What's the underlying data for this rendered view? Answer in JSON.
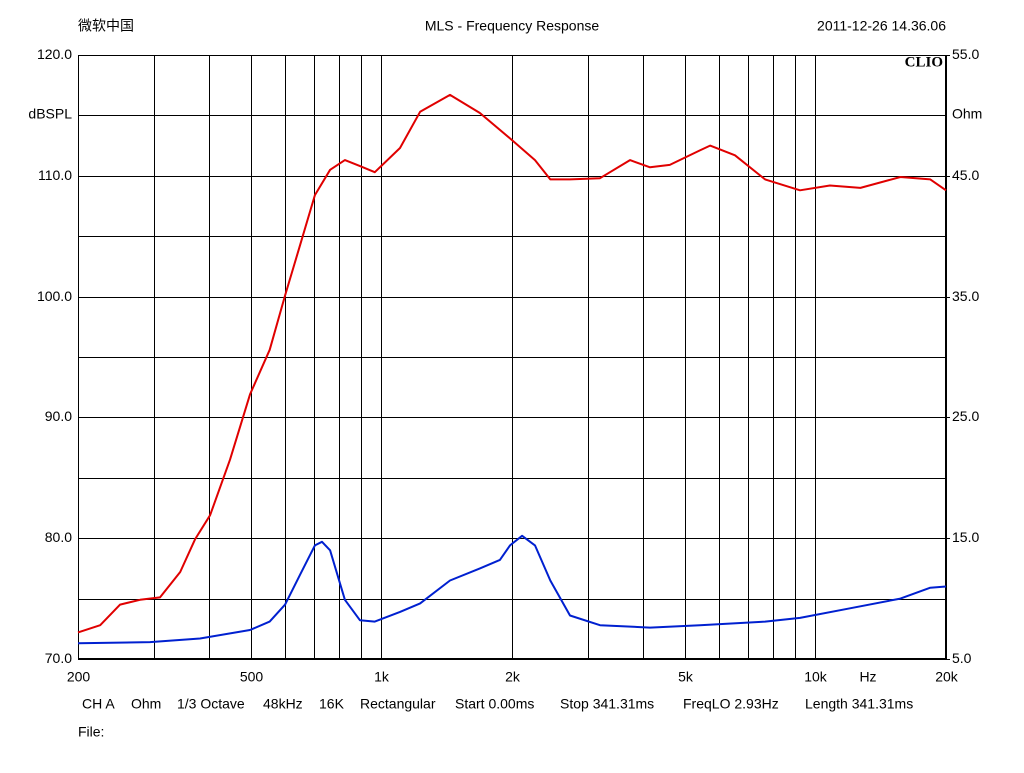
{
  "chart_data": {
    "type": "line",
    "header_left": "微软中国",
    "title": "MLS - Frequency Response",
    "date": "2011-12-26 14.36.06",
    "logo": "CLIO",
    "ylabel": "dBSPL",
    "y2label": "Ohm",
    "x_unit": "Hz",
    "xscale": "log",
    "grid": true,
    "xlim": [
      200,
      20000
    ],
    "xticks": [
      200,
      500,
      {
        "value": 1000,
        "label": "1k"
      },
      {
        "value": 2000,
        "label": "2k"
      },
      {
        "value": 5000,
        "label": "5k"
      },
      {
        "value": 10000,
        "label": "10k"
      },
      {
        "value": 20000,
        "label": "20k"
      }
    ],
    "xminorticks": [
      300,
      400,
      600,
      700,
      800,
      900,
      3000,
      4000,
      6000,
      7000,
      8000,
      9000
    ],
    "ylim": [
      70,
      120
    ],
    "yticks": [
      {
        "value": 70,
        "label": "70.0"
      },
      {
        "value": 80,
        "label": "80.0"
      },
      {
        "value": 90,
        "label": "90.0"
      },
      {
        "value": 100,
        "label": "100.0"
      },
      {
        "value": 110,
        "label": "110.0"
      },
      {
        "value": 120,
        "label": "120.0"
      }
    ],
    "yminorticks": [
      75,
      85,
      95,
      105,
      115
    ],
    "y2lim": [
      5,
      55
    ],
    "y2ticks": [
      {
        "value": 5,
        "label": "5.0"
      },
      {
        "value": 15,
        "label": "15.0"
      },
      {
        "value": 25,
        "label": "25.0"
      },
      {
        "value": 35,
        "label": "35.0"
      },
      {
        "value": 45,
        "label": "45.0"
      },
      {
        "value": 55,
        "label": "55.0"
      }
    ],
    "series": [
      {
        "color": "#e00000",
        "x": [
          200,
          225,
          250,
          278,
          309,
          344,
          372,
          403,
          448,
          498,
          553,
          600,
          650,
          703,
          762,
          824,
          893,
          966,
          1104,
          1228,
          1439,
          1687,
          1979,
          2260,
          2450,
          2720,
          3190,
          3740,
          4160,
          4620,
          5420,
          5720,
          6530,
          7660,
          9220,
          10800,
          12700,
          15700,
          18400,
          20000
        ],
        "values": [
          72.2,
          72.8,
          74.5,
          74.9,
          75.1,
          77.2,
          79.9,
          81.9,
          86.5,
          91.9,
          95.6,
          100.1,
          104.3,
          108.4,
          110.5,
          111.3,
          110.8,
          110.3,
          112.3,
          115.3,
          116.7,
          115.2,
          113.1,
          111.3,
          109.7,
          109.7,
          109.8,
          111.3,
          110.7,
          110.9,
          112.1,
          112.5,
          111.7,
          109.7,
          108.8,
          109.2,
          109.0,
          109.9,
          109.7,
          108.8
        ]
      },
      {
        "color": "#0020d0",
        "axis": "y2",
        "x": [
          200,
          293,
          382,
          498,
          553,
          600,
          650,
          703,
          730,
          762,
          824,
          893,
          966,
          1104,
          1228,
          1439,
          1687,
          1876,
          1979,
          2110,
          2260,
          2450,
          2720,
          3190,
          4160,
          5420,
          7660,
          9220,
          12020,
          15700,
          18400,
          20000
        ],
        "values": [
          6.3,
          6.4,
          6.7,
          7.4,
          8.1,
          9.5,
          12.0,
          14.4,
          14.7,
          14.0,
          9.9,
          8.2,
          8.1,
          8.9,
          9.6,
          11.5,
          12.5,
          13.2,
          14.4,
          15.2,
          14.4,
          11.5,
          8.6,
          7.8,
          7.6,
          7.8,
          8.1,
          8.4,
          9.2,
          10.0,
          10.9,
          11.0
        ]
      }
    ],
    "info": [
      "CH A",
      "Ohm",
      "1/3 Octave",
      "48kHz",
      "16K",
      "Rectangular",
      "Start 0.00ms",
      "Stop 341.31ms",
      "FreqLO 2.93Hz",
      "Length 341.31ms"
    ],
    "file_label": "File:"
  }
}
